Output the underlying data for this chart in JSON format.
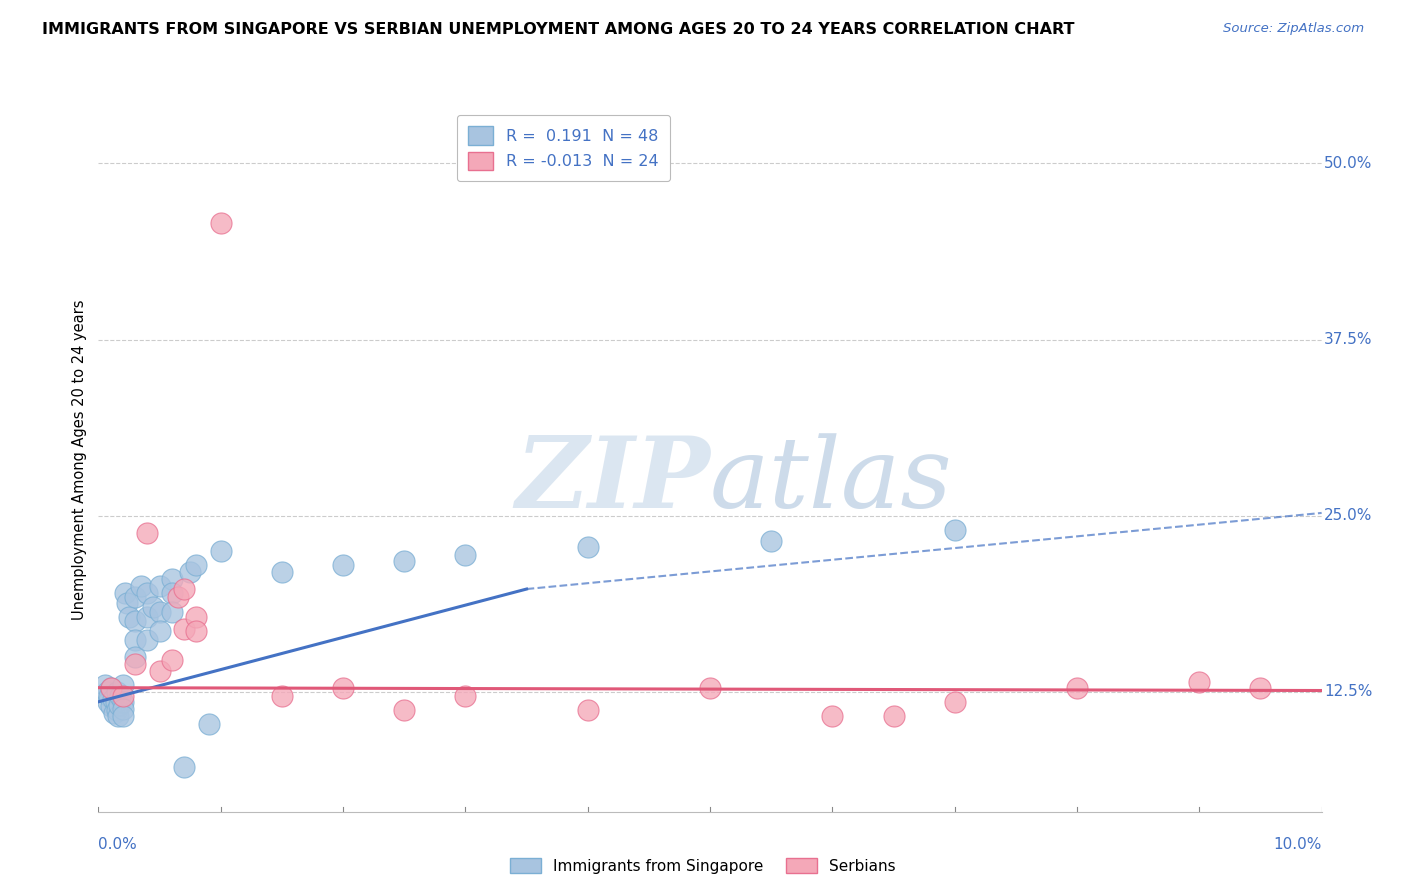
{
  "title": "IMMIGRANTS FROM SINGAPORE VS SERBIAN UNEMPLOYMENT AMONG AGES 20 TO 24 YEARS CORRELATION CHART",
  "source": "Source: ZipAtlas.com",
  "ylabel": "Unemployment Among Ages 20 to 24 years",
  "legend_r1": "R =  0.191  N = 48",
  "legend_r2": "R = -0.013  N = 24",
  "blue_label": "Immigrants from Singapore",
  "pink_label": "Serbians",
  "blue_color": "#a8c4e0",
  "blue_edge": "#7bafd4",
  "pink_color": "#f4a8b8",
  "pink_edge": "#e87090",
  "blue_line_color": "#4472c4",
  "pink_line_color": "#e05878",
  "xlim": [
    0.0,
    0.1
  ],
  "ylim": [
    0.04,
    0.54
  ],
  "yticks": [
    0.125,
    0.25,
    0.375,
    0.5
  ],
  "ytick_labels": [
    "12.5%",
    "25.0%",
    "37.5%",
    "50.0%"
  ],
  "blue_scatter": [
    [
      0.0005,
      0.13
    ],
    [
      0.0007,
      0.125
    ],
    [
      0.0008,
      0.118
    ],
    [
      0.0009,
      0.122
    ],
    [
      0.001,
      0.115
    ],
    [
      0.001,
      0.128
    ],
    [
      0.0012,
      0.12
    ],
    [
      0.0013,
      0.11
    ],
    [
      0.0014,
      0.118
    ],
    [
      0.0015,
      0.125
    ],
    [
      0.0015,
      0.112
    ],
    [
      0.0016,
      0.108
    ],
    [
      0.0017,
      0.116
    ],
    [
      0.0018,
      0.122
    ],
    [
      0.002,
      0.13
    ],
    [
      0.002,
      0.118
    ],
    [
      0.002,
      0.113
    ],
    [
      0.002,
      0.108
    ],
    [
      0.0022,
      0.195
    ],
    [
      0.0023,
      0.188
    ],
    [
      0.0025,
      0.178
    ],
    [
      0.003,
      0.192
    ],
    [
      0.003,
      0.175
    ],
    [
      0.003,
      0.162
    ],
    [
      0.003,
      0.15
    ],
    [
      0.0035,
      0.2
    ],
    [
      0.004,
      0.195
    ],
    [
      0.004,
      0.178
    ],
    [
      0.004,
      0.162
    ],
    [
      0.0045,
      0.185
    ],
    [
      0.005,
      0.2
    ],
    [
      0.005,
      0.182
    ],
    [
      0.005,
      0.168
    ],
    [
      0.006,
      0.205
    ],
    [
      0.006,
      0.195
    ],
    [
      0.006,
      0.182
    ],
    [
      0.007,
      0.072
    ],
    [
      0.0075,
      0.21
    ],
    [
      0.008,
      0.215
    ],
    [
      0.009,
      0.102
    ],
    [
      0.01,
      0.225
    ],
    [
      0.015,
      0.21
    ],
    [
      0.02,
      0.215
    ],
    [
      0.025,
      0.218
    ],
    [
      0.03,
      0.222
    ],
    [
      0.04,
      0.228
    ],
    [
      0.055,
      0.232
    ],
    [
      0.07,
      0.24
    ]
  ],
  "pink_scatter": [
    [
      0.001,
      0.128
    ],
    [
      0.002,
      0.122
    ],
    [
      0.003,
      0.145
    ],
    [
      0.004,
      0.238
    ],
    [
      0.005,
      0.14
    ],
    [
      0.006,
      0.148
    ],
    [
      0.0065,
      0.192
    ],
    [
      0.007,
      0.198
    ],
    [
      0.007,
      0.17
    ],
    [
      0.008,
      0.178
    ],
    [
      0.008,
      0.168
    ],
    [
      0.01,
      0.458
    ],
    [
      0.015,
      0.122
    ],
    [
      0.02,
      0.128
    ],
    [
      0.025,
      0.112
    ],
    [
      0.03,
      0.122
    ],
    [
      0.04,
      0.112
    ],
    [
      0.05,
      0.128
    ],
    [
      0.06,
      0.108
    ],
    [
      0.065,
      0.108
    ],
    [
      0.07,
      0.118
    ],
    [
      0.08,
      0.128
    ],
    [
      0.09,
      0.132
    ],
    [
      0.095,
      0.128
    ]
  ],
  "blue_solid_line": [
    [
      0.0,
      0.118
    ],
    [
      0.035,
      0.198
    ]
  ],
  "blue_dashed_line": [
    [
      0.035,
      0.198
    ],
    [
      0.1,
      0.252
    ]
  ],
  "pink_line": [
    [
      0.0,
      0.128
    ],
    [
      0.1,
      0.126
    ]
  ],
  "background_color": "#ffffff",
  "grid_color": "#cccccc"
}
